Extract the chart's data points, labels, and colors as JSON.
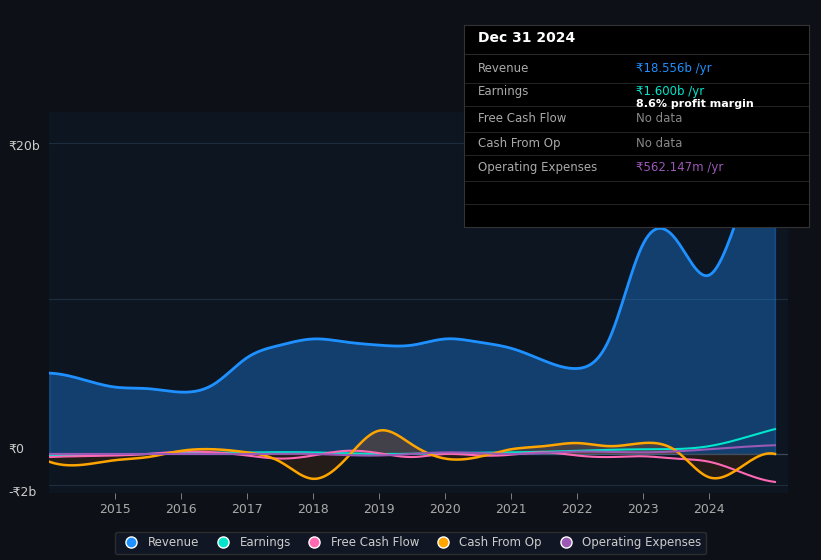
{
  "bg_color": "#0d1117",
  "chart_bg": "#0d1520",
  "grid_color": "#1e2d3d",
  "ylabel_20b": "₹20b",
  "ylabel_0": "₹0",
  "ylabel_n2b": "-₹2b",
  "x_ticks": [
    2015,
    2016,
    2017,
    2018,
    2019,
    2020,
    2021,
    2022,
    2023,
    2024
  ],
  "revenue_color": "#1e90ff",
  "earnings_color": "#00e5cc",
  "fcf_color": "#ff69b4",
  "cashop_color": "#ffa500",
  "opex_color": "#9b59b6",
  "info_box": {
    "date": "Dec 31 2024",
    "revenue_label": "Revenue",
    "revenue_value": "₹18.556b /yr",
    "earnings_label": "Earnings",
    "earnings_value": "₹1.600b /yr",
    "margin_label": "8.6% profit margin",
    "fcf_label": "Free Cash Flow",
    "fcf_value": "No data",
    "cashop_label": "Cash From Op",
    "cashop_value": "No data",
    "opex_label": "Operating Expenses",
    "opex_value": "₹562.147m /yr"
  },
  "legend": [
    {
      "label": "Revenue",
      "color": "#1e90ff"
    },
    {
      "label": "Earnings",
      "color": "#00e5cc"
    },
    {
      "label": "Free Cash Flow",
      "color": "#ff69b4"
    },
    {
      "label": "Cash From Op",
      "color": "#ffa500"
    },
    {
      "label": "Operating Expenses",
      "color": "#9b59b6"
    }
  ]
}
